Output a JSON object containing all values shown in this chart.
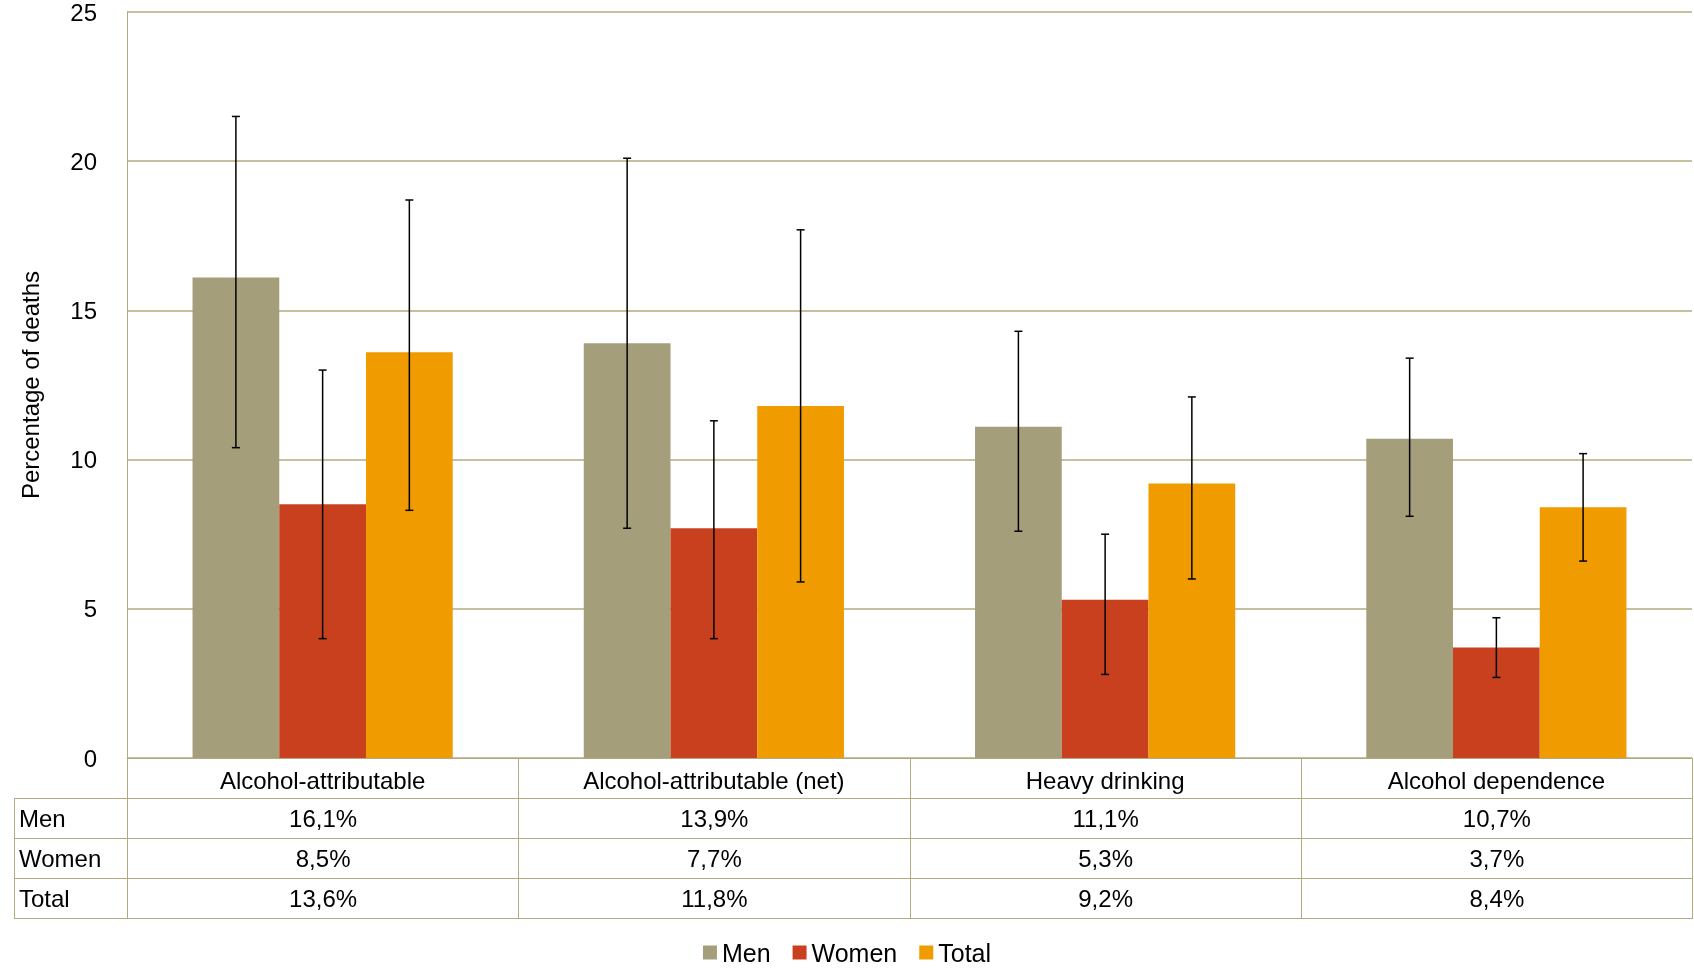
{
  "chart_data": {
    "type": "bar",
    "ylabel": "Percentage of deaths",
    "categories": [
      "Alcohol-attributable",
      "Alcohol-attributable (net)",
      "Heavy drinking",
      "Alcohol dependence"
    ],
    "series": [
      {
        "name": "Men",
        "color": "#a59e7a",
        "values": [
          16.1,
          13.9,
          11.1,
          10.7
        ],
        "value_labels": [
          "16,1%",
          "13,9%",
          "11,1%",
          "10,7%"
        ],
        "errors": [
          [
            10.4,
            21.5
          ],
          [
            7.7,
            20.1
          ],
          [
            7.6,
            14.3
          ],
          [
            8.1,
            13.4
          ]
        ]
      },
      {
        "name": "Women",
        "color": "#c9401f",
        "values": [
          8.5,
          7.7,
          5.3,
          3.7
        ],
        "value_labels": [
          "8,5%",
          "7,7%",
          "5,3%",
          "3,7%"
        ],
        "errors": [
          [
            4.0,
            13.0
          ],
          [
            4.0,
            11.3
          ],
          [
            2.8,
            7.5
          ],
          [
            2.7,
            4.7
          ]
        ]
      },
      {
        "name": "Total",
        "color": "#f09c00",
        "values": [
          13.6,
          11.8,
          9.2,
          8.4
        ],
        "value_labels": [
          "13,6%",
          "11,8%",
          "9,2%",
          "8,4%"
        ],
        "errors": [
          [
            8.3,
            18.7
          ],
          [
            5.9,
            17.7
          ],
          [
            6.0,
            12.1
          ],
          [
            6.6,
            10.2
          ]
        ]
      }
    ],
    "ylim": [
      0,
      25
    ],
    "yticks": [
      0,
      5,
      10,
      15,
      20,
      25
    ],
    "grid": "y",
    "legend": "bottom"
  }
}
